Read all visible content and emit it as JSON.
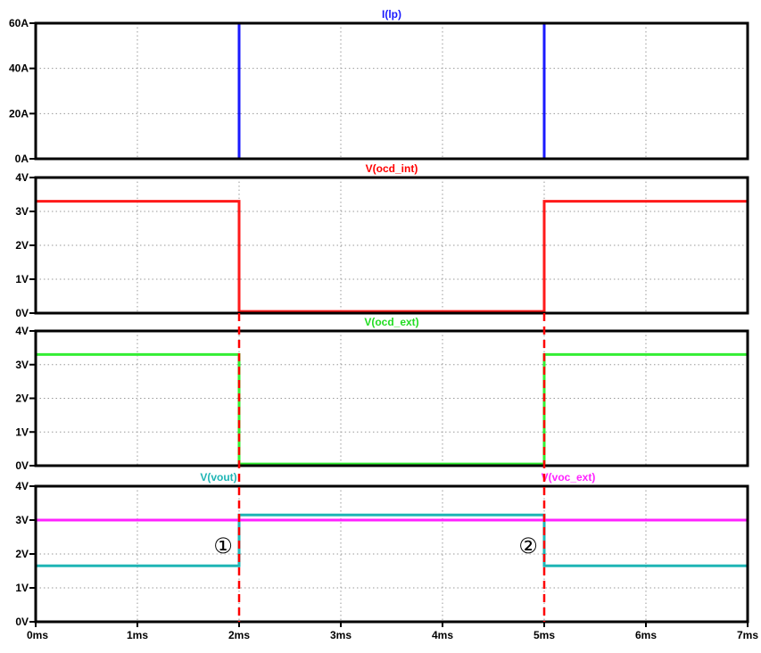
{
  "chart_data": [
    {
      "type": "line",
      "title": "I(lp)",
      "title_color": "#1a1aff",
      "yticks": [
        "0A",
        "20A",
        "40A",
        "60A"
      ],
      "ylim": [
        0,
        60
      ],
      "x": [
        0,
        2,
        2,
        5,
        5,
        7
      ],
      "series": [
        {
          "name": "I(lp)",
          "color": "#1a1aff",
          "values": [
            0,
            0,
            60,
            60,
            0,
            0
          ]
        }
      ]
    },
    {
      "type": "line",
      "title": "V(ocd_int)",
      "title_color": "#ff0000",
      "yticks": [
        "0V",
        "1V",
        "2V",
        "3V",
        "4V"
      ],
      "ylim": [
        0,
        4
      ],
      "x": [
        0,
        2,
        2,
        5,
        5,
        7
      ],
      "series": [
        {
          "name": "V(ocd_int)",
          "color": "#ff1a1a",
          "values": [
            3.3,
            3.3,
            0.05,
            0.05,
            3.3,
            3.3
          ]
        }
      ]
    },
    {
      "type": "line",
      "title": "V(ocd_ext)",
      "title_color": "#22dd22",
      "yticks": [
        "0V",
        "1V",
        "2V",
        "3V",
        "4V"
      ],
      "ylim": [
        0,
        4
      ],
      "x": [
        0,
        2,
        2,
        5,
        5,
        7
      ],
      "series": [
        {
          "name": "V(ocd_ext)",
          "color": "#33ee33",
          "values": [
            3.3,
            3.3,
            0.05,
            0.05,
            3.3,
            3.3
          ]
        }
      ]
    },
    {
      "type": "line",
      "yticks": [
        "0V",
        "1V",
        "2V",
        "3V",
        "4V"
      ],
      "ylim": [
        0,
        4
      ],
      "x": [
        0,
        2,
        2,
        5,
        5,
        7
      ],
      "series": [
        {
          "name": "V(vout)",
          "color": "#1fb5b5",
          "values": [
            1.65,
            1.65,
            3.15,
            3.15,
            1.65,
            1.65
          ]
        },
        {
          "name": "V(voc_ext)",
          "color": "#ff22ff",
          "values": [
            3.0,
            3.0,
            3.0,
            3.0,
            3.0,
            3.0
          ]
        }
      ],
      "annotations": [
        "①",
        "②"
      ]
    }
  ],
  "xticks": [
    "0ms",
    "1ms",
    "2ms",
    "3ms",
    "4ms",
    "5ms",
    "6ms",
    "7ms"
  ],
  "xlim": [
    0,
    7
  ],
  "markers": {
    "x": [
      2,
      5
    ],
    "color": "#ff0000"
  }
}
